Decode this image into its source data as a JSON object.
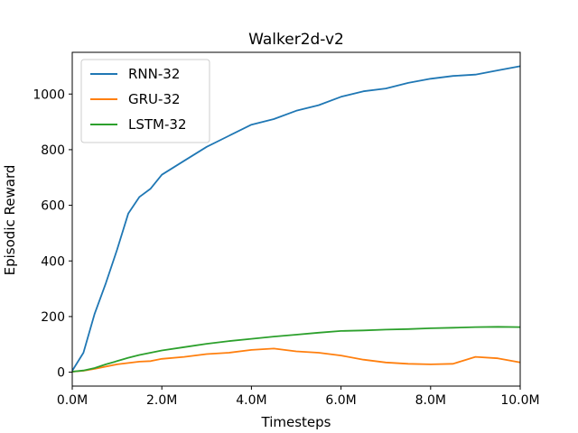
{
  "chart_data": {
    "type": "line",
    "title": "Walker2d-v2",
    "xlabel": "Timesteps",
    "ylabel": "Episodic Reward",
    "xlim": [
      0,
      10000000
    ],
    "ylim": [
      -50,
      1150
    ],
    "xticks": [
      0,
      2000000,
      4000000,
      6000000,
      8000000,
      10000000
    ],
    "xtick_labels": [
      "0.0M",
      "2.0M",
      "4.0M",
      "6.0M",
      "8.0M",
      "10.0M"
    ],
    "yticks": [
      0,
      200,
      400,
      600,
      800,
      1000
    ],
    "ytick_labels": [
      "0",
      "200",
      "400",
      "600",
      "800",
      "1000"
    ],
    "grid": false,
    "legend_position": "top-left",
    "x": [
      0,
      250000,
      500000,
      750000,
      1000000,
      1250000,
      1500000,
      1750000,
      2000000,
      2500000,
      3000000,
      3500000,
      4000000,
      4500000,
      5000000,
      5500000,
      6000000,
      6500000,
      7000000,
      7500000,
      8000000,
      8500000,
      9000000,
      9500000,
      10000000
    ],
    "series": [
      {
        "name": "RNN-32",
        "color": "#1f77b4",
        "values": [
          5,
          70,
          210,
          320,
          440,
          570,
          630,
          660,
          710,
          760,
          810,
          850,
          890,
          910,
          940,
          960,
          990,
          1010,
          1020,
          1040,
          1055,
          1065,
          1070,
          1085,
          1100
        ]
      },
      {
        "name": "GRU-32",
        "color": "#ff7f0e",
        "values": [
          2,
          5,
          12,
          20,
          28,
          33,
          38,
          40,
          48,
          55,
          65,
          70,
          80,
          85,
          75,
          70,
          60,
          45,
          35,
          30,
          28,
          30,
          55,
          50,
          35
        ]
      },
      {
        "name": "LSTM-32",
        "color": "#2ca02c",
        "values": [
          2,
          6,
          15,
          28,
          40,
          52,
          62,
          70,
          78,
          90,
          102,
          112,
          120,
          128,
          135,
          142,
          148,
          150,
          153,
          155,
          158,
          160,
          162,
          163,
          162
        ]
      }
    ]
  }
}
